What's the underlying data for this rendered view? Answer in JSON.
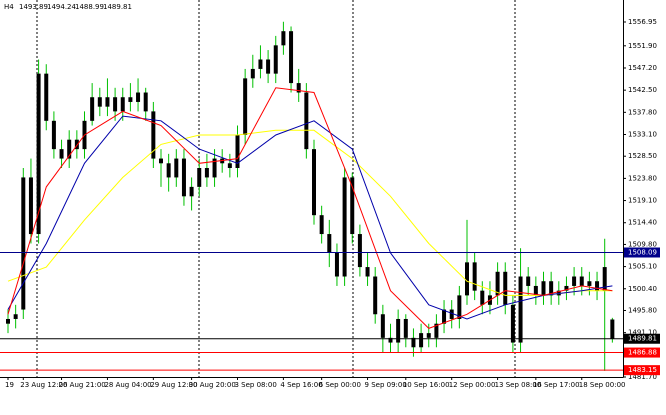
{
  "chart_data": {
    "type": "candlestick",
    "title": "H4",
    "open": [
      1493,
      1494,
      1496,
      1524,
      1512,
      1546,
      1536,
      1530,
      1528,
      1532,
      1530,
      1536,
      1541,
      1539,
      1541,
      1538,
      1541,
      1540,
      1542,
      1538,
      1528,
      1527,
      1524,
      1528,
      1520,
      1522,
      1526,
      1524,
      1528,
      1527,
      1526,
      1533,
      1545,
      1547,
      1549,
      1546,
      1552,
      1555,
      1544,
      1542,
      1530,
      1516,
      1512,
      1508,
      1503,
      1524,
      1512,
      1505,
      1503,
      1495,
      1490,
      1489,
      1494,
      1490,
      1488,
      1491,
      1490,
      1493,
      1496,
      1494,
      1499,
      1506,
      1500,
      1497,
      1499,
      1504,
      1497,
      1489,
      1503,
      1501,
      1499,
      1502,
      1499,
      1500,
      1501,
      1503,
      1501,
      1502,
      1500,
      1493.89
    ],
    "high": [
      1496,
      1497,
      1526,
      1528,
      1549,
      1548,
      1538,
      1532,
      1534,
      1534,
      1538,
      1544,
      1543,
      1545,
      1543,
      1543,
      1544,
      1545,
      1543,
      1540,
      1530,
      1529,
      1530,
      1530,
      1524,
      1528,
      1529,
      1530,
      1530,
      1529,
      1535,
      1547,
      1550,
      1552,
      1551,
      1554,
      1557,
      1556,
      1547,
      1544,
      1532,
      1518,
      1515,
      1510,
      1526,
      1525,
      1514,
      1508,
      1505,
      1497,
      1493,
      1496,
      1495,
      1492,
      1493,
      1493,
      1495,
      1498,
      1498,
      1501,
      1515,
      1508,
      1502,
      1502,
      1506,
      1506,
      1499,
      1509,
      1505,
      1503,
      1504,
      1504,
      1502,
      1503,
      1505,
      1505,
      1504,
      1504,
      1511,
      1494.24
    ],
    "low": [
      1491,
      1492,
      1494,
      1510,
      1510,
      1534,
      1528,
      1526,
      1526,
      1528,
      1528,
      1535,
      1537,
      1537,
      1536,
      1536,
      1538,
      1538,
      1536,
      1526,
      1522,
      1521,
      1522,
      1518,
      1517,
      1520,
      1522,
      1522,
      1525,
      1524,
      1524,
      1531,
      1543,
      1545,
      1544,
      1544,
      1550,
      1542,
      1540,
      1528,
      1514,
      1510,
      1505,
      1501,
      1501,
      1510,
      1503,
      1501,
      1493,
      1487,
      1487,
      1487,
      1488,
      1486,
      1487,
      1488,
      1488,
      1491,
      1492,
      1492,
      1497,
      1498,
      1495,
      1495,
      1497,
      1495,
      1487,
      1487,
      1499,
      1497,
      1497,
      1497,
      1497,
      1498,
      1499,
      1499,
      1499,
      1498,
      1483,
      1488.99
    ],
    "close": [
      1494,
      1495,
      1524,
      1512,
      1546,
      1536,
      1530,
      1528,
      1532,
      1530,
      1536,
      1541,
      1539,
      1541,
      1538,
      1541,
      1540,
      1542,
      1538,
      1528,
      1527,
      1524,
      1528,
      1520,
      1522,
      1526,
      1524,
      1528,
      1527,
      1526,
      1533,
      1545,
      1547,
      1549,
      1546,
      1552,
      1555,
      1544,
      1542,
      1530,
      1516,
      1512,
      1508,
      1503,
      1524,
      1512,
      1505,
      1503,
      1495,
      1490,
      1489,
      1494,
      1490,
      1488,
      1491,
      1490,
      1493,
      1496,
      1494,
      1499,
      1506,
      1500,
      1497,
      1499,
      1504,
      1497,
      1489,
      1503,
      1501,
      1499,
      1502,
      1499,
      1500,
      1501,
      1503,
      1501,
      1502,
      1500,
      1505,
      1489.81
    ],
    "body_color": "#000000",
    "wick_color": "#00c000",
    "indicators": [
      {
        "color": "#ffff00",
        "x": [
          0,
          5,
          10,
          15,
          20,
          25,
          30,
          35,
          40,
          45,
          50,
          55,
          60,
          65,
          70,
          75,
          79
        ],
        "values": [
          1502,
          1505,
          1515,
          1524,
          1531,
          1533,
          1533,
          1534,
          1534,
          1528,
          1520,
          1510,
          1502,
          1499,
          1499,
          1500,
          1500
        ]
      },
      {
        "color": "#0000aa",
        "x": [
          0,
          5,
          10,
          15,
          20,
          25,
          30,
          35,
          40,
          45,
          50,
          55,
          60,
          65,
          70,
          75,
          79
        ],
        "values": [
          1496,
          1510,
          1527,
          1537,
          1536,
          1530,
          1527,
          1533,
          1536,
          1530,
          1508,
          1497,
          1494,
          1497,
          1499,
          1500,
          1501
        ]
      },
      {
        "color": "#ff0000",
        "x": [
          0,
          5,
          10,
          15,
          20,
          25,
          30,
          35,
          40,
          45,
          50,
          55,
          60,
          65,
          70,
          75,
          79
        ],
        "values": [
          1495,
          1522,
          1533,
          1538,
          1535,
          1527,
          1528,
          1543,
          1542,
          1522,
          1500,
          1492,
          1495,
          1500,
          1499,
          1501,
          1500
        ]
      }
    ],
    "levels": [
      {
        "value": 1508.09,
        "color": "#00008b"
      },
      {
        "value": 1489.81,
        "color": "#000000"
      },
      {
        "value": 1486.88,
        "color": "#ff0000"
      },
      {
        "value": 1483.15,
        "color": "#ff0000"
      }
    ],
    "ylim": [
      1481.7,
      1561.61
    ],
    "yticks": [
      1556.95,
      {
        "value": 1551.9,
        "label": "1551.90"
      },
      {
        "value": 1547.2,
        "label": "1547.20"
      },
      {
        "value": 1542.5,
        "label": "1542.50"
      },
      {
        "value": 1537.8,
        "label": "1537.80"
      },
      {
        "value": 1533.1,
        "label": "1533.10"
      },
      {
        "value": 1528.5,
        "label": "1528.50"
      },
      {
        "value": 1523.8,
        "label": "1523.80"
      },
      {
        "value": 1519.1,
        "label": "1519.10"
      },
      {
        "value": 1514.4,
        "label": "1514.40"
      },
      {
        "value": 1509.8,
        "label": "1509.80"
      },
      {
        "value": 1505.1,
        "label": "1505.10"
      },
      {
        "value": 1500.4,
        "label": "1500.40"
      },
      {
        "value": 1495.8,
        "label": "1495.80"
      },
      {
        "value": 1491.1,
        "label": "1491.10"
      },
      {
        "value": 1481.7,
        "label": "1481.70"
      }
    ],
    "xticks": [
      {
        "value": 0,
        "label": "19"
      },
      {
        "value": 2,
        "label": "23 Aug 12:00"
      },
      {
        "value": 7,
        "label": "26 Aug 21:00"
      },
      {
        "value": 13,
        "label": "28 Aug 04:00"
      },
      {
        "value": 19,
        "label": "29 Aug 12:00"
      },
      {
        "value": 24,
        "label": "30 Aug 20:00"
      },
      {
        "value": 30,
        "label": "3 Sep 08:00"
      },
      {
        "value": 36,
        "label": "4 Sep 16:00"
      },
      {
        "value": 41,
        "label": "6 Sep 00:00"
      },
      {
        "value": 47,
        "label": "9 Sep 09:00"
      },
      {
        "value": 52,
        "label": "10 Sep 16:00"
      },
      {
        "value": 58,
        "label": "12 Sep 00:00"
      },
      {
        "value": 64,
        "label": "13 Sep 08:00"
      },
      {
        "value": 69,
        "label": "16 Sep 17:00"
      },
      {
        "value": 75,
        "label": "18 Sep 00:00"
      }
    ]
  }
}
